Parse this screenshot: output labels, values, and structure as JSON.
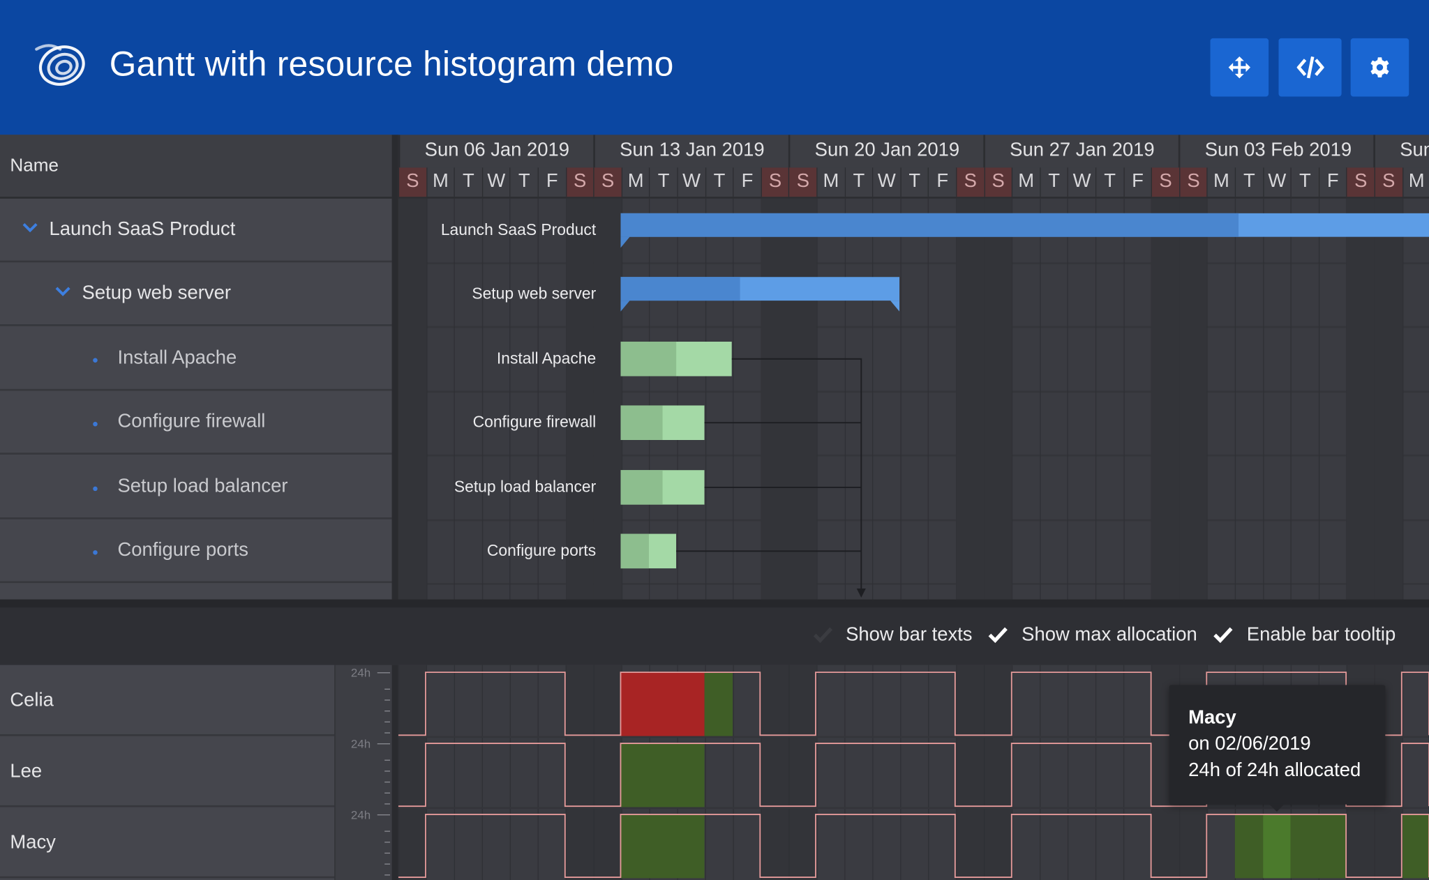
{
  "header": {
    "title": "Gantt with resource histogram demo",
    "buttons": [
      {
        "name": "fullscreen",
        "icon": "move-arrows-icon"
      },
      {
        "name": "code",
        "icon": "code-icon"
      },
      {
        "name": "settings",
        "icon": "gear-icon"
      }
    ],
    "colors": {
      "background": "#0b47a2",
      "button": "#1a66d2"
    }
  },
  "grid": {
    "column_header": "Name",
    "rows": [
      {
        "label": "Launch SaaS Product",
        "level": 0,
        "expanded": true,
        "type": "parent"
      },
      {
        "label": "Setup web server",
        "level": 1,
        "expanded": true,
        "type": "parent"
      },
      {
        "label": "Install Apache",
        "level": 2,
        "type": "leaf"
      },
      {
        "label": "Configure firewall",
        "level": 2,
        "type": "leaf"
      },
      {
        "label": "Setup load balancer",
        "level": 2,
        "type": "leaf"
      },
      {
        "label": "Configure ports",
        "level": 2,
        "type": "leaf"
      }
    ]
  },
  "timeline": {
    "weeks": [
      "Sun 06 Jan 2019",
      "Sun 13 Jan 2019",
      "Sun 20 Jan 2019",
      "Sun 27 Jan 2019",
      "Sun 03 Feb 2019",
      "Sun"
    ],
    "days": [
      "S",
      "M",
      "T",
      "W",
      "T",
      "F",
      "S",
      "S",
      "M",
      "T",
      "W",
      "T",
      "F",
      "S",
      "S",
      "M",
      "T",
      "W",
      "T",
      "F",
      "S",
      "S",
      "M",
      "T",
      "W",
      "T",
      "F",
      "S",
      "S",
      "M",
      "T",
      "W",
      "T",
      "F",
      "S",
      "S",
      "M"
    ]
  },
  "tasks": [
    {
      "name": "Launch SaaS Product",
      "kind": "parent",
      "percent_done": 60
    },
    {
      "name": "Setup web server",
      "kind": "parent",
      "percent_done": 43
    },
    {
      "name": "Install Apache",
      "kind": "task",
      "percent_done": 50
    },
    {
      "name": "Configure firewall",
      "kind": "task",
      "percent_done": 50
    },
    {
      "name": "Setup load balancer",
      "kind": "task",
      "percent_done": 50
    },
    {
      "name": "Configure ports",
      "kind": "task",
      "percent_done": 50
    }
  ],
  "toolbar": {
    "options": [
      {
        "label": "Show bar texts",
        "checked": false
      },
      {
        "label": "Show max allocation",
        "checked": true
      },
      {
        "label": "Enable bar tooltip",
        "checked": true
      }
    ]
  },
  "histogram": {
    "scale_label": "24h",
    "resources": [
      "Celia",
      "Lee",
      "Macy"
    ],
    "colors": {
      "over": "#a82424",
      "ok": "#3f5e26",
      "ok_light": "#4b7a2c",
      "max_line": "#e59a9a"
    }
  },
  "tooltip": {
    "title": "Macy",
    "line1": "on 02/06/2019",
    "line2": "24h of 24h allocated"
  }
}
